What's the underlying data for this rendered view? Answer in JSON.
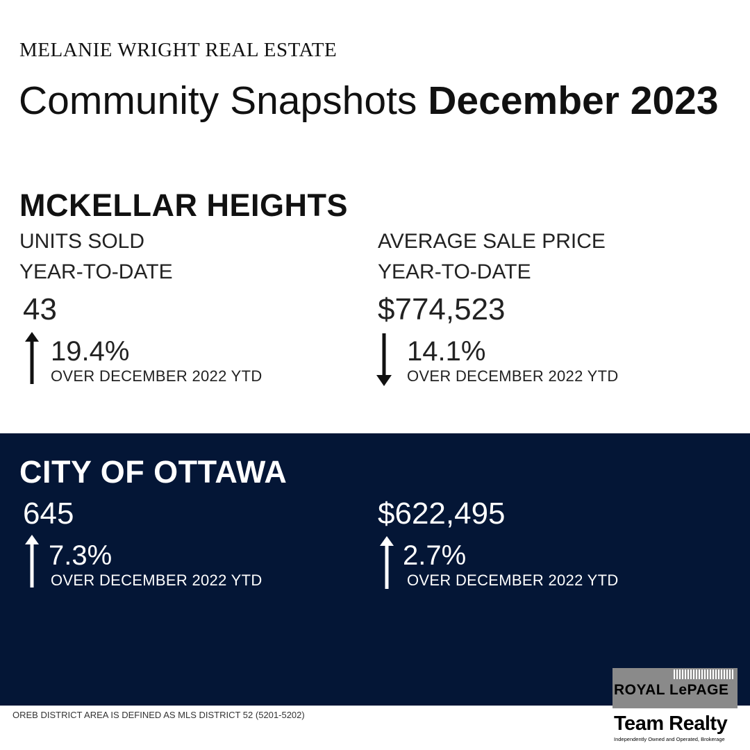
{
  "brand": "MELANIE WRIGHT REAL ESTATE",
  "title": {
    "regular": "Community Snapshots ",
    "bold": "December 2023"
  },
  "community": {
    "name": "MCKELLAR HEIGHTS",
    "units": {
      "label": "UNITS SOLD",
      "period": "YEAR-TO-DATE",
      "value": "43",
      "change": "19.4%",
      "direction": "up",
      "comparison": "OVER DECEMBER 2022 YTD"
    },
    "price": {
      "label": "AVERAGE SALE PRICE",
      "period": "YEAR-TO-DATE",
      "value": "$774,523",
      "change": "14.1%",
      "direction": "down",
      "comparison": "OVER DECEMBER 2022 YTD"
    }
  },
  "city": {
    "name": "CITY OF OTTAWA",
    "units": {
      "value": "645",
      "change": "7.3%",
      "direction": "up",
      "comparison": "OVER DECEMBER 2022 YTD"
    },
    "price": {
      "value": "$622,495",
      "change": "2.7%",
      "direction": "up",
      "comparison": "OVER DECEMBER 2022 YTD"
    }
  },
  "footer": "OREB DISTRICT AREA IS DEFINED AS MLS DISTRICT 52 (5201-5202)",
  "logo": {
    "line1": "ROYAL LePAGE",
    "line2": "Team Realty",
    "line3": "Independently Owned and Operated, Brokerage"
  },
  "colors": {
    "dark_panel": "#041636",
    "text": "#111111",
    "accent_white": "#ffffff"
  }
}
